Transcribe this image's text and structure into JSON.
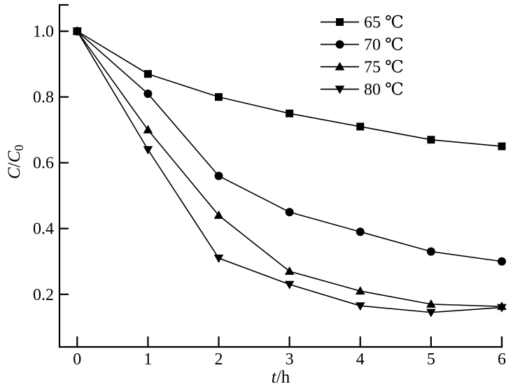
{
  "figure": {
    "background": "#ffffff",
    "ink": "#000000"
  },
  "chart_data": {
    "type": "line",
    "title": "",
    "xlabel": "t/h",
    "ylabel": "C/C0",
    "xlabel_rich": [
      {
        "text": "t",
        "italic": true
      },
      {
        "text": "/h",
        "italic": false
      }
    ],
    "ylabel_rich": [
      {
        "text": "C",
        "italic": true
      },
      {
        "text": "/",
        "italic": false
      },
      {
        "text": "C",
        "italic": true
      },
      {
        "text": "0",
        "italic": false,
        "sub": true
      }
    ],
    "x": [
      0,
      1,
      2,
      3,
      4,
      5,
      6
    ],
    "x_tick_labels": [
      "0",
      "1",
      "2",
      "3",
      "4",
      "5",
      "6"
    ],
    "y_ticks": [
      0.2,
      0.4,
      0.6,
      0.8,
      1.0
    ],
    "y_tick_labels": [
      "0.2",
      "0.4",
      "0.6",
      "0.8",
      "1.0"
    ],
    "xlim": [
      -0.25,
      6
    ],
    "ylim": [
      0.04,
      1.08
    ],
    "grid": false,
    "legend": {
      "position": "inside-top-right",
      "entries": [
        "65 ℃",
        "70 ℃",
        "75 ℃",
        "80 ℃"
      ]
    },
    "series": [
      {
        "name": "65 ℃",
        "marker": "square",
        "color": "#000000",
        "values": [
          1.0,
          0.87,
          0.8,
          0.75,
          0.71,
          0.67,
          0.65
        ]
      },
      {
        "name": "70 ℃",
        "marker": "circle",
        "color": "#000000",
        "values": [
          1.0,
          0.81,
          0.56,
          0.45,
          0.39,
          0.33,
          0.3
        ]
      },
      {
        "name": "75 ℃",
        "marker": "triangle-up",
        "color": "#000000",
        "values": [
          1.0,
          0.7,
          0.44,
          0.27,
          0.21,
          0.17,
          0.163
        ]
      },
      {
        "name": "80 ℃",
        "marker": "triangle-down",
        "color": "#000000",
        "values": [
          1.0,
          0.64,
          0.31,
          0.23,
          0.165,
          0.145,
          0.16
        ]
      }
    ]
  }
}
